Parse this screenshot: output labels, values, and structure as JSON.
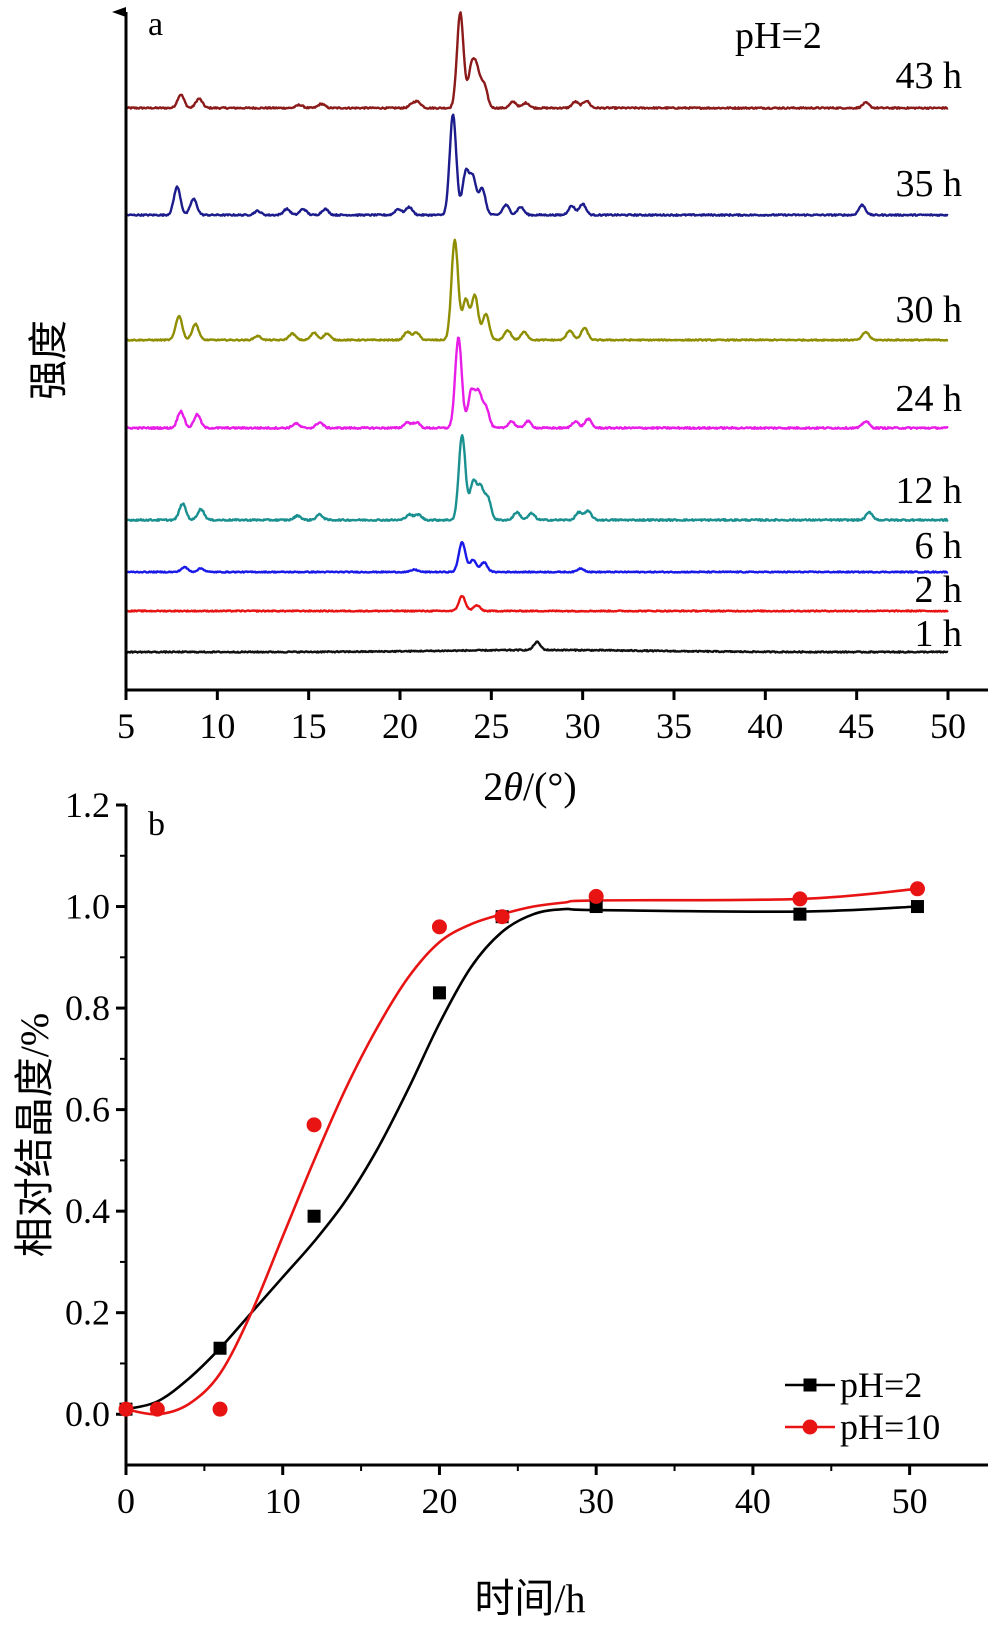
{
  "chart_data": [
    {
      "panel": "a",
      "type": "line",
      "annotation": "pH=2",
      "xlabel_prefix": "2",
      "xlabel_var": "θ",
      "xlabel_suffix": "/(°)",
      "ylabel": "强度",
      "xlim": [
        5,
        50
      ],
      "x_ticks": [
        5,
        10,
        15,
        20,
        25,
        30,
        35,
        40,
        45,
        50
      ],
      "y_ticks": false,
      "grid": false,
      "series": [
        {
          "name": "43 h",
          "color": "#8b1a1a",
          "main_peak_intensity": 0.92,
          "noise": 0.05,
          "peaks": [
            [
              8.0,
              0.13
            ],
            [
              9.0,
              0.09
            ],
            [
              14.5,
              0.03
            ],
            [
              15.7,
              0.04
            ],
            [
              20.7,
              0.04
            ],
            [
              21.0,
              0.05
            ],
            [
              23.3,
              0.92
            ],
            [
              23.9,
              0.35
            ],
            [
              24.2,
              0.33
            ],
            [
              24.6,
              0.22
            ],
            [
              26.2,
              0.06
            ],
            [
              26.9,
              0.05
            ],
            [
              29.6,
              0.06
            ],
            [
              30.2,
              0.07
            ],
            [
              45.5,
              0.05
            ]
          ]
        },
        {
          "name": "35 h",
          "color": "#1c1c8c",
          "main_peak_intensity": 1.0,
          "noise": 0.05,
          "peaks": [
            [
              7.8,
              0.28
            ],
            [
              8.7,
              0.16
            ],
            [
              12.2,
              0.04
            ],
            [
              13.8,
              0.06
            ],
            [
              14.7,
              0.06
            ],
            [
              15.9,
              0.06
            ],
            [
              19.9,
              0.06
            ],
            [
              20.5,
              0.08
            ],
            [
              22.9,
              1.0
            ],
            [
              23.6,
              0.42
            ],
            [
              24.0,
              0.36
            ],
            [
              24.5,
              0.26
            ],
            [
              25.8,
              0.1
            ],
            [
              26.6,
              0.08
            ],
            [
              29.4,
              0.09
            ],
            [
              30.0,
              0.11
            ],
            [
              45.3,
              0.1
            ]
          ]
        },
        {
          "name": "30 h",
          "color": "#8e8e00",
          "main_peak_intensity": 1.25,
          "noise": 0.05,
          "peaks": [
            [
              7.9,
              0.3
            ],
            [
              8.8,
              0.2
            ],
            [
              12.2,
              0.05
            ],
            [
              14.1,
              0.08
            ],
            [
              15.3,
              0.09
            ],
            [
              16.0,
              0.08
            ],
            [
              20.4,
              0.1
            ],
            [
              20.9,
              0.09
            ],
            [
              23.0,
              1.25
            ],
            [
              23.6,
              0.5
            ],
            [
              24.1,
              0.55
            ],
            [
              24.7,
              0.32
            ],
            [
              25.9,
              0.12
            ],
            [
              26.8,
              0.1
            ],
            [
              29.3,
              0.12
            ],
            [
              30.1,
              0.15
            ],
            [
              45.5,
              0.1
            ]
          ]
        },
        {
          "name": "24 h",
          "color": "#e81ee8",
          "main_peak_intensity": 0.8,
          "noise": 0.05,
          "peaks": [
            [
              8.0,
              0.15
            ],
            [
              8.9,
              0.12
            ],
            [
              14.3,
              0.04
            ],
            [
              15.6,
              0.05
            ],
            [
              20.4,
              0.05
            ],
            [
              20.9,
              0.05
            ],
            [
              23.2,
              0.8
            ],
            [
              23.9,
              0.32
            ],
            [
              24.3,
              0.3
            ],
            [
              24.7,
              0.18
            ],
            [
              26.1,
              0.06
            ],
            [
              27.0,
              0.06
            ],
            [
              29.6,
              0.06
            ],
            [
              30.3,
              0.08
            ],
            [
              45.5,
              0.06
            ]
          ]
        },
        {
          "name": "12 h",
          "color": "#1a9090",
          "main_peak_intensity": 0.78,
          "noise": 0.05,
          "peaks": [
            [
              8.1,
              0.15
            ],
            [
              9.1,
              0.1
            ],
            [
              14.4,
              0.04
            ],
            [
              15.6,
              0.05
            ],
            [
              20.5,
              0.05
            ],
            [
              21.0,
              0.05
            ],
            [
              23.4,
              0.78
            ],
            [
              24.0,
              0.34
            ],
            [
              24.4,
              0.28
            ],
            [
              24.8,
              0.2
            ],
            [
              26.4,
              0.07
            ],
            [
              27.2,
              0.06
            ],
            [
              29.8,
              0.07
            ],
            [
              30.3,
              0.08
            ],
            [
              45.7,
              0.07
            ]
          ]
        },
        {
          "name": "6 h",
          "color": "#1a1ae8",
          "main_peak_intensity": 0.25,
          "noise": 0.03,
          "peaks": [
            [
              8.2,
              0.04
            ],
            [
              9.1,
              0.03
            ],
            [
              20.8,
              0.02
            ],
            [
              23.4,
              0.25
            ],
            [
              24.0,
              0.1
            ],
            [
              24.6,
              0.08
            ],
            [
              29.9,
              0.03
            ]
          ]
        },
        {
          "name": "2 h",
          "color": "#e81414",
          "main_peak_intensity": 0.08,
          "noise": 0.02,
          "peaks": [
            [
              23.4,
              0.08
            ],
            [
              24.2,
              0.03
            ]
          ]
        },
        {
          "name": "1 h",
          "color": "#111111",
          "main_peak_intensity": 0.04,
          "noise": 0.02,
          "peaks": [
            [
              27.5,
              0.04
            ]
          ]
        }
      ]
    },
    {
      "panel": "b",
      "type": "line",
      "xlabel": "时间/h",
      "ylabel": "相对结晶度/%",
      "xlim": [
        0,
        55
      ],
      "ylim": [
        -0.1,
        1.2
      ],
      "x_ticks": [
        0,
        10,
        20,
        30,
        40,
        50
      ],
      "y_ticks": [
        0.0,
        0.2,
        0.4,
        0.6,
        0.8,
        1.0,
        1.2
      ],
      "y_tick_labels": [
        "0.0",
        "0.2",
        "0.4",
        "0.6",
        "0.8",
        "1.0",
        "1.2"
      ],
      "grid": false,
      "legend_position": "bottom-right",
      "series": [
        {
          "name": "pH=2",
          "color": "#000000",
          "marker": "square",
          "points": [
            [
              0,
              0.01
            ],
            [
              6,
              0.13
            ],
            [
              12,
              0.39
            ],
            [
              20,
              0.83
            ],
            [
              24,
              0.98
            ],
            [
              30,
              1.0
            ],
            [
              43,
              0.985
            ],
            [
              50.5,
              1.0
            ]
          ],
          "fit": [
            [
              0,
              0.01
            ],
            [
              2,
              0.025
            ],
            [
              4,
              0.07
            ],
            [
              6,
              0.13
            ],
            [
              8,
              0.2
            ],
            [
              10,
              0.27
            ],
            [
              12,
              0.34
            ],
            [
              14,
              0.42
            ],
            [
              16,
              0.52
            ],
            [
              18,
              0.64
            ],
            [
              20,
              0.77
            ],
            [
              22,
              0.88
            ],
            [
              24,
              0.95
            ],
            [
              26,
              0.985
            ],
            [
              28,
              0.995
            ],
            [
              30,
              0.993
            ],
            [
              43,
              0.99
            ],
            [
              50.5,
              1.0
            ]
          ]
        },
        {
          "name": "pH=10",
          "color": "#e81414",
          "marker": "circle",
          "points": [
            [
              0,
              0.01
            ],
            [
              2,
              0.01
            ],
            [
              6,
              0.01
            ],
            [
              12,
              0.57
            ],
            [
              20,
              0.96
            ],
            [
              24,
              0.98
            ],
            [
              30,
              1.02
            ],
            [
              43,
              1.015
            ],
            [
              50.5,
              1.035
            ]
          ],
          "fit": [
            [
              0,
              0.01
            ],
            [
              2,
              0.0
            ],
            [
              4,
              0.02
            ],
            [
              6,
              0.08
            ],
            [
              8,
              0.2
            ],
            [
              10,
              0.35
            ],
            [
              12,
              0.5
            ],
            [
              14,
              0.64
            ],
            [
              16,
              0.76
            ],
            [
              18,
              0.86
            ],
            [
              20,
              0.93
            ],
            [
              22,
              0.965
            ],
            [
              24,
              0.985
            ],
            [
              26,
              1.0
            ],
            [
              28,
              1.008
            ],
            [
              30,
              1.012
            ],
            [
              43,
              1.015
            ],
            [
              50.5,
              1.035
            ]
          ]
        }
      ]
    }
  ]
}
